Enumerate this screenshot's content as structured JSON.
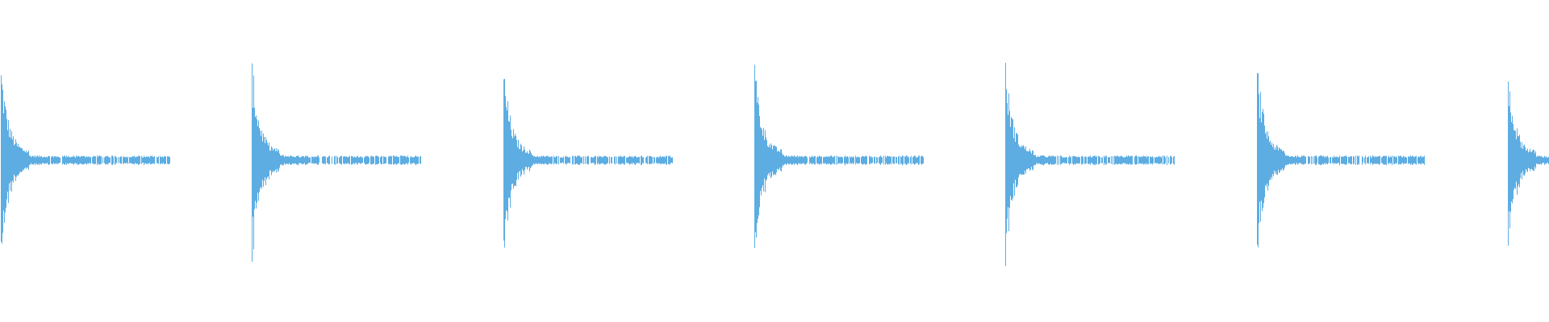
{
  "chart_data": {
    "type": "waveform",
    "color": "#5dade2",
    "background": "#ffffff",
    "grid": false,
    "axes": false,
    "pulse_count": 7,
    "pulse_peak_amplitudes": [
      0.97,
      1.0,
      0.95,
      1.0,
      0.98,
      0.99,
      0.9
    ],
    "ylim": [
      -1,
      1
    ]
  }
}
